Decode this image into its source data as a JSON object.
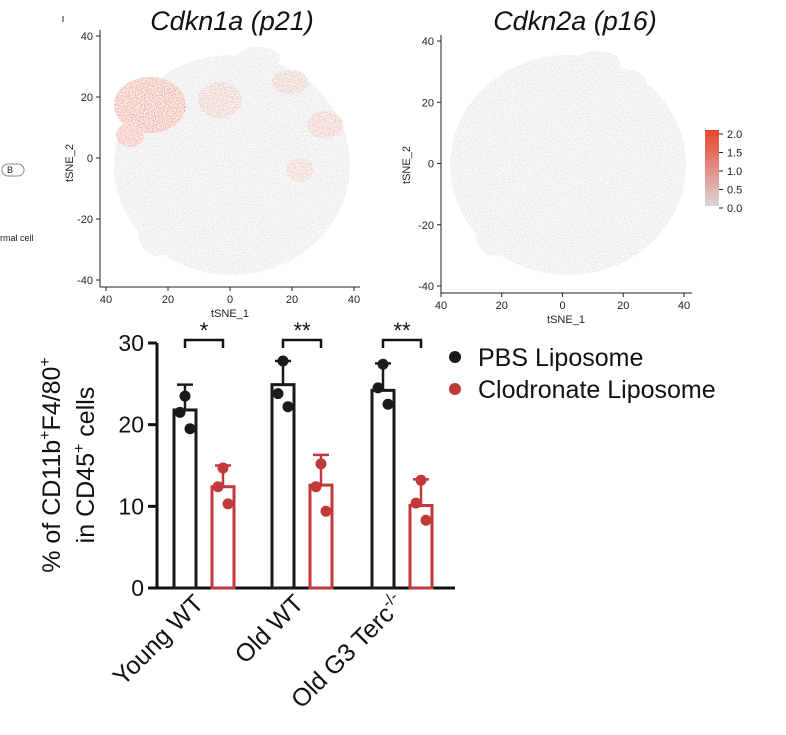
{
  "fragments": {
    "b_label": "B",
    "cell_label": "rmal cell"
  },
  "colorbar": {
    "ticks": [
      "2.0",
      "1.5",
      "1.0",
      "0.5",
      "0.0"
    ],
    "low_color": "#d8d8d8",
    "high_color": "#e8432e"
  },
  "chart_data": [
    {
      "type": "scatter",
      "title": "Cdkn1a (p21)",
      "xlabel": "tSNE_1",
      "ylabel": "tSNE_2",
      "xticks": [
        "40",
        "20",
        "0",
        "20",
        "40"
      ],
      "yticks": [
        "40",
        "20",
        "0",
        "-20",
        "-40"
      ],
      "xlim": [
        -40,
        40
      ],
      "ylim": [
        -40,
        40
      ],
      "expression_range": [
        0.0,
        2.0
      ]
    },
    {
      "type": "scatter",
      "title": "Cdkn2a (p16)",
      "xlabel": "tSNE_1",
      "ylabel": "tSNE_2",
      "xticks": [
        "40",
        "20",
        "0",
        "20",
        "40"
      ],
      "yticks": [
        "40",
        "20",
        "0",
        "-20",
        "-40"
      ],
      "xlim": [
        -40,
        40
      ],
      "ylim": [
        -40,
        40
      ],
      "expression_range": [
        0.0,
        2.0
      ]
    },
    {
      "type": "bar",
      "categories": [
        "Young WT",
        "Old WT",
        "Old G3 Terc-/-"
      ],
      "ylabel_line1": "% of CD11b+F4/80+",
      "ylabel_line2": "in CD45+ cells",
      "ylim": [
        0,
        30
      ],
      "yticks": [
        "0",
        "10",
        "20",
        "30"
      ],
      "significance": [
        "*",
        "**",
        "**"
      ],
      "series": [
        {
          "name": "PBS Liposome",
          "color": "#1a1a1a",
          "values": [
            21.8,
            24.9,
            24.2
          ],
          "errors": [
            3.1,
            2.9,
            3.3
          ],
          "points": [
            [
              23.5,
              21.5,
              19.5
            ],
            [
              27.8,
              23.8,
              22.2
            ],
            [
              27.4,
              24.5,
              22.5
            ]
          ]
        },
        {
          "name": "Clodronate Liposome",
          "color": "#c0393b",
          "values": [
            12.4,
            12.6,
            10.1
          ],
          "errors": [
            2.6,
            3.7,
            3.2
          ],
          "points": [
            [
              14.7,
              12.4,
              10.3
            ],
            [
              15.2,
              12.4,
              9.4
            ],
            [
              13.2,
              10.4,
              8.3
            ]
          ]
        }
      ]
    }
  ]
}
